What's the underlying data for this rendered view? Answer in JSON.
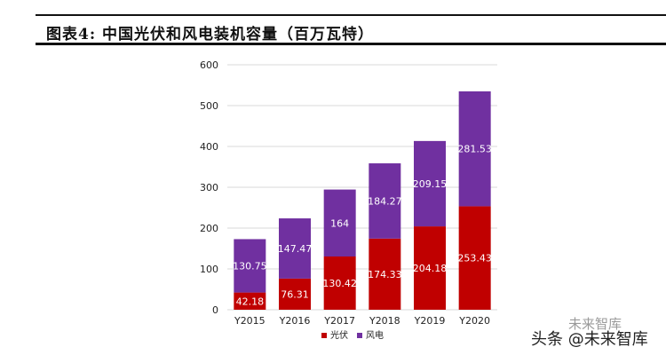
{
  "header": {
    "title": "图表4: 中国光伏和风电装机容量（百万瓦特）"
  },
  "chart_data": {
    "type": "bar",
    "stacked": true,
    "title": "",
    "xlabel": "",
    "ylabel": "",
    "categories": [
      "Y2015",
      "Y2016",
      "Y2017",
      "Y2018",
      "Y2019",
      "Y2020"
    ],
    "series": [
      {
        "name": "光伏",
        "color": "#c00000",
        "values": [
          42.18,
          76.31,
          130.42,
          174.33,
          204.18,
          253.43
        ],
        "labels": [
          "42.18",
          "76.31",
          "130.42",
          "174.33",
          "204.18",
          "253.43"
        ]
      },
      {
        "name": "风电",
        "color": "#7030a0",
        "values": [
          130.75,
          147.47,
          164,
          184.27,
          209.15,
          281.53
        ],
        "labels": [
          "130.75",
          "147.47",
          "164",
          "184.27",
          "209.15",
          "281.53"
        ]
      }
    ],
    "ylim": [
      0,
      600
    ],
    "yticks": [
      0,
      100,
      200,
      300,
      400,
      500,
      600
    ],
    "grid": true,
    "legend": "bottom"
  },
  "watermark": {
    "text": "头条 @未来智库",
    "faint_text": "未来智库"
  }
}
